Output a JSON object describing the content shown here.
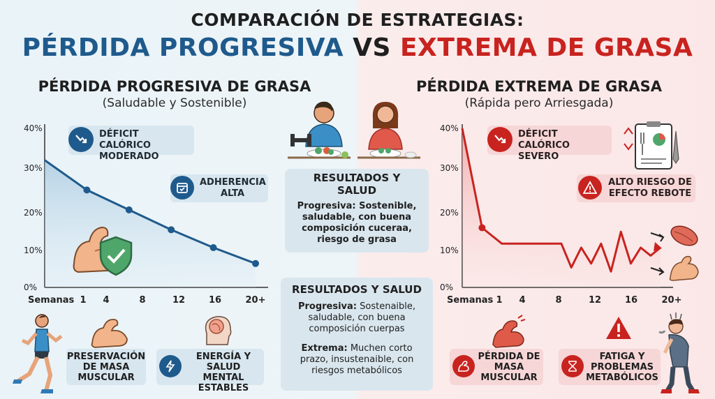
{
  "header": {
    "line1": "COMPARACIÓN DE ESTRATEGIAS:",
    "left_word": "PÉRDIDA PROGRESIVA",
    "vs": "VS",
    "right_word": "EXTREMA DE GRASA"
  },
  "left": {
    "title": "PÉRDIDA PROGRESIVA DE GRASA",
    "subtitle": "(Saludable y Sostenible)",
    "deficit": "DÉFICIT CALÓRICO MODERADO",
    "adherence": "ADHERENCIA ALTA",
    "bottom_muscle": "PRESERVACIÓN DE MASA MUSCULAR",
    "bottom_energy": "ENERGÍA Y SALUD MENTAL ESTABLES"
  },
  "right": {
    "title": "PÉRDIDA EXTREMA DE GRASA",
    "subtitle": "(Rápida pero Arriesgada)",
    "deficit": "DÉFICIT CALÓRICO SEVERO",
    "rebound": "ALTO RIESGO DE EFECTO REBOTE",
    "bottom_muscle": "PÉRDIDA DE MASA MUSCULAR",
    "bottom_fatigue": "FATIGA Y PROBLEMAS METABÓLICOS"
  },
  "center": {
    "box1_title": "RESULTADOS Y SALUD",
    "box1_text": "Progresiva: Sostenible, saludable, con buena composición cuceraa, riesgo de grasa",
    "box2_title": "RESULTADOS Y SALUD",
    "box2_prog_label": "Progresiva:",
    "box2_prog_text": "Sostenaible, saludable, con buena composición cuerpas",
    "box2_ext_label": "Extrema:",
    "box2_ext_text": "Muchen corto prazo, insustenaible, con riesgos metabólicos"
  },
  "chart_data": [
    {
      "type": "line",
      "xlabel": "Semanas",
      "x_ticks": [
        "1",
        "4",
        "8",
        "12",
        "16",
        "20+"
      ],
      "y_ticks": [
        "40%",
        "30%",
        "20%",
        "10%",
        "0%"
      ],
      "ylim": [
        0,
        40
      ],
      "series": [
        {
          "x": [
            0,
            4,
            8,
            12,
            16,
            20
          ],
          "values": [
            32,
            24.5,
            19.5,
            14.5,
            10,
            6
          ]
        }
      ],
      "color": "#1f5a8c"
    },
    {
      "type": "line",
      "xlabel": "Semanas",
      "x_ticks": [
        "1",
        "4",
        "8",
        "12",
        "16",
        "20+"
      ],
      "y_ticks": [
        "40%",
        "30%",
        "20%",
        "10%",
        "0%"
      ],
      "ylim": [
        0,
        40
      ],
      "series": [
        {
          "x": [
            0,
            2,
            4,
            6,
            8,
            10,
            11,
            12,
            13,
            14,
            15,
            16,
            17,
            18,
            19,
            20
          ],
          "values": [
            40,
            15,
            11,
            11,
            11,
            11,
            5,
            10,
            6,
            11,
            4,
            14,
            6,
            10,
            8,
            10
          ]
        }
      ],
      "color": "#c8231f"
    }
  ]
}
